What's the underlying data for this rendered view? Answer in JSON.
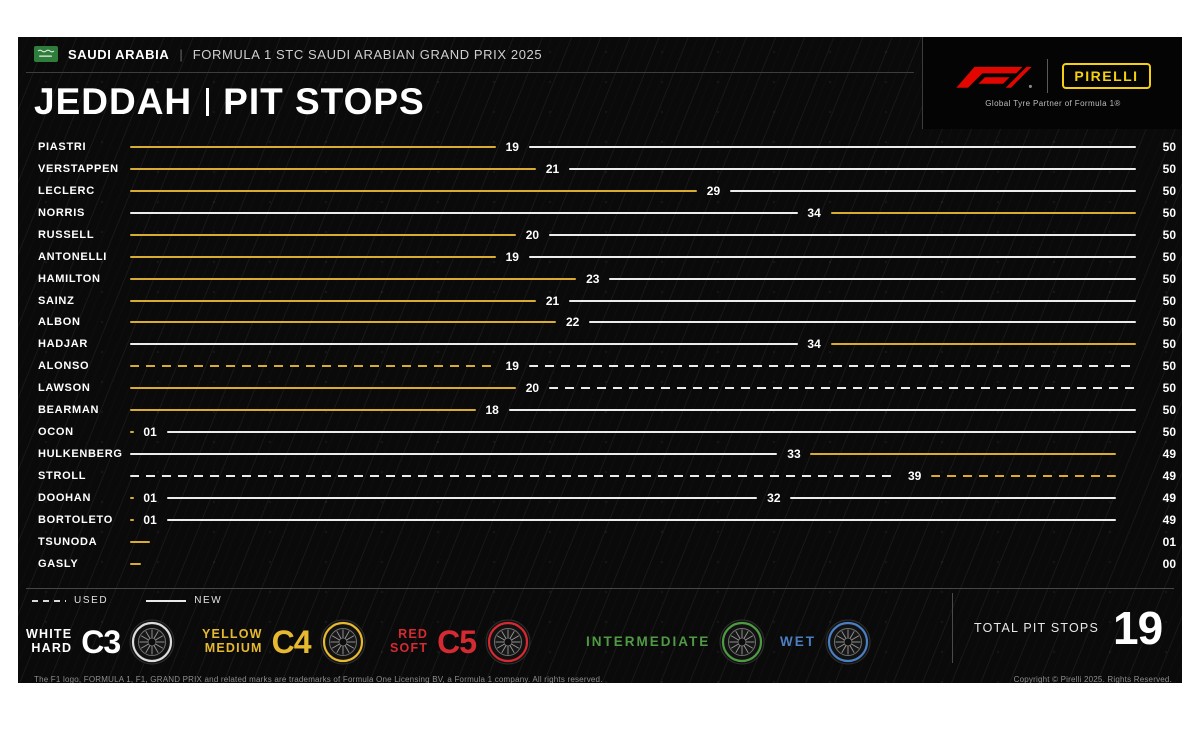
{
  "header": {
    "country": "SAUDI ARABIA",
    "separator": "|",
    "event": "FORMULA 1 STC SAUDI ARABIAN GRAND PRIX 2025"
  },
  "title": {
    "city": "JEDDAH",
    "label": "PIT STOPS"
  },
  "branding": {
    "f1_logo": "F1",
    "pirelli_logo": "PIRELLI",
    "tagline": "Global Tyre Partner of Formula 1®"
  },
  "legend": {
    "used": "USED",
    "new": "NEW"
  },
  "compounds": [
    {
      "name_lines": [
        "WHITE",
        "HARD"
      ],
      "code": "C3",
      "color": "#ffffff"
    },
    {
      "name_lines": [
        "YELLOW",
        "MEDIUM"
      ],
      "code": "C4",
      "color": "#e6b92f"
    },
    {
      "name_lines": [
        "RED",
        "SOFT"
      ],
      "code": "C5",
      "color": "#d62a32"
    },
    {
      "name_lines": [
        "INTERMEDIATE"
      ],
      "code": "",
      "color": "#4f9b43"
    },
    {
      "name_lines": [
        "WET"
      ],
      "code": "",
      "color": "#4a7fc1"
    }
  ],
  "total": {
    "label": "TOTAL PIT STOPS",
    "value": "19"
  },
  "footer": {
    "left": "The F1 logo, FORMULA 1, F1, GRAND PRIX and related marks are trademarks of Formula One Licensing BV, a Formula 1 company. All rights reserved.",
    "right": "Copyright © Pirelli 2025. Rights Reserved."
  },
  "chart_data": {
    "type": "bar",
    "subtype": "horizontal-stint-timeline",
    "title": "JEDDAH | PIT STOPS",
    "x_range": [
      0,
      50
    ],
    "legend": {
      "dashed": "USED",
      "solid": "NEW"
    },
    "compound_colors": {
      "medium": "#d9ab31",
      "hard": "#ececec"
    },
    "total_pit_stops": 19,
    "rows": [
      {
        "driver": "PIASTRI",
        "finish": "50",
        "stints": [
          {
            "compound": "medium",
            "used": false,
            "from": 0,
            "to": 19,
            "label": "19"
          },
          {
            "compound": "hard",
            "used": false,
            "from": 19,
            "to": 50
          }
        ]
      },
      {
        "driver": "VERSTAPPEN",
        "finish": "50",
        "stints": [
          {
            "compound": "medium",
            "used": false,
            "from": 0,
            "to": 21,
            "label": "21"
          },
          {
            "compound": "hard",
            "used": false,
            "from": 21,
            "to": 50
          }
        ]
      },
      {
        "driver": "LECLERC",
        "finish": "50",
        "stints": [
          {
            "compound": "medium",
            "used": false,
            "from": 0,
            "to": 29,
            "label": "29"
          },
          {
            "compound": "hard",
            "used": false,
            "from": 29,
            "to": 50
          }
        ]
      },
      {
        "driver": "NORRIS",
        "finish": "50",
        "stints": [
          {
            "compound": "hard",
            "used": false,
            "from": 0,
            "to": 34,
            "label": "34"
          },
          {
            "compound": "medium",
            "used": false,
            "from": 34,
            "to": 50
          }
        ]
      },
      {
        "driver": "RUSSELL",
        "finish": "50",
        "stints": [
          {
            "compound": "medium",
            "used": false,
            "from": 0,
            "to": 20,
            "label": "20"
          },
          {
            "compound": "hard",
            "used": false,
            "from": 20,
            "to": 50
          }
        ]
      },
      {
        "driver": "ANTONELLI",
        "finish": "50",
        "stints": [
          {
            "compound": "medium",
            "used": false,
            "from": 0,
            "to": 19,
            "label": "19"
          },
          {
            "compound": "hard",
            "used": false,
            "from": 19,
            "to": 50
          }
        ]
      },
      {
        "driver": "HAMILTON",
        "finish": "50",
        "stints": [
          {
            "compound": "medium",
            "used": false,
            "from": 0,
            "to": 23,
            "label": "23"
          },
          {
            "compound": "hard",
            "used": false,
            "from": 23,
            "to": 50
          }
        ]
      },
      {
        "driver": "SAINZ",
        "finish": "50",
        "stints": [
          {
            "compound": "medium",
            "used": false,
            "from": 0,
            "to": 21,
            "label": "21"
          },
          {
            "compound": "hard",
            "used": false,
            "from": 21,
            "to": 50
          }
        ]
      },
      {
        "driver": "ALBON",
        "finish": "50",
        "stints": [
          {
            "compound": "medium",
            "used": false,
            "from": 0,
            "to": 22,
            "label": "22"
          },
          {
            "compound": "hard",
            "used": false,
            "from": 22,
            "to": 50
          }
        ]
      },
      {
        "driver": "HADJAR",
        "finish": "50",
        "stints": [
          {
            "compound": "hard",
            "used": false,
            "from": 0,
            "to": 34,
            "label": "34"
          },
          {
            "compound": "medium",
            "used": false,
            "from": 34,
            "to": 50
          }
        ]
      },
      {
        "driver": "ALONSO",
        "finish": "50",
        "stints": [
          {
            "compound": "medium",
            "used": true,
            "from": 0,
            "to": 19,
            "label": "19"
          },
          {
            "compound": "hard",
            "used": true,
            "from": 19,
            "to": 50
          }
        ]
      },
      {
        "driver": "LAWSON",
        "finish": "50",
        "stints": [
          {
            "compound": "medium",
            "used": false,
            "from": 0,
            "to": 20,
            "label": "20"
          },
          {
            "compound": "hard",
            "used": true,
            "from": 20,
            "to": 50
          }
        ]
      },
      {
        "driver": "BEARMAN",
        "finish": "50",
        "stints": [
          {
            "compound": "medium",
            "used": false,
            "from": 0,
            "to": 18,
            "label": "18"
          },
          {
            "compound": "hard",
            "used": false,
            "from": 18,
            "to": 50
          }
        ]
      },
      {
        "driver": "OCON",
        "finish": "50",
        "stints": [
          {
            "compound": "medium",
            "used": false,
            "from": 0,
            "to": 1,
            "label": "01"
          },
          {
            "compound": "hard",
            "used": false,
            "from": 1,
            "to": 50
          }
        ]
      },
      {
        "driver": "HULKENBERG",
        "finish": "49",
        "stints": [
          {
            "compound": "hard",
            "used": false,
            "from": 0,
            "to": 33,
            "label": "33"
          },
          {
            "compound": "medium",
            "used": false,
            "from": 33,
            "to": 49
          }
        ]
      },
      {
        "driver": "STROLL",
        "finish": "49",
        "stints": [
          {
            "compound": "hard",
            "used": true,
            "from": 0,
            "to": 39,
            "label": "39"
          },
          {
            "compound": "medium",
            "used": true,
            "from": 39,
            "to": 49
          }
        ]
      },
      {
        "driver": "DOOHAN",
        "finish": "49",
        "stints": [
          {
            "compound": "medium",
            "used": false,
            "from": 0,
            "to": 1,
            "label": "01"
          },
          {
            "compound": "hard",
            "used": false,
            "from": 1,
            "to": 32,
            "label": "32"
          },
          {
            "compound": "hard",
            "used": false,
            "from": 32,
            "to": 49
          }
        ]
      },
      {
        "driver": "BORTOLETO",
        "finish": "49",
        "stints": [
          {
            "compound": "medium",
            "used": false,
            "from": 0,
            "to": 1,
            "label": "01"
          },
          {
            "compound": "hard",
            "used": false,
            "from": 1,
            "to": 49
          }
        ]
      },
      {
        "driver": "TSUNODA",
        "finish": "01",
        "stints": [
          {
            "compound": "medium",
            "used": false,
            "from": 0,
            "to": 1
          }
        ]
      },
      {
        "driver": "GASLY",
        "finish": "00",
        "stints": [
          {
            "compound": "medium",
            "used": false,
            "from": 0,
            "to": 0.55
          }
        ]
      }
    ]
  }
}
